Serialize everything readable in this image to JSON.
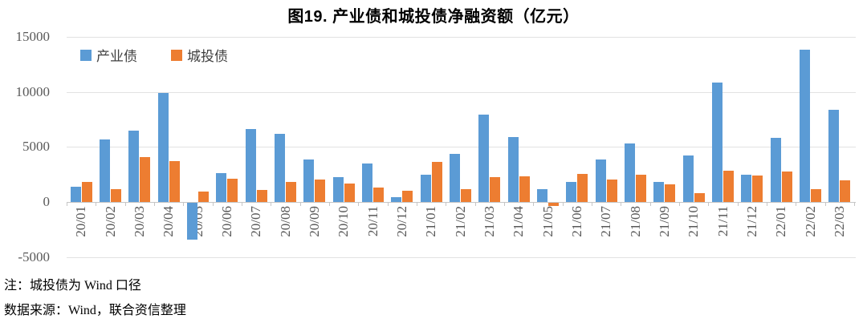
{
  "chart_data": {
    "type": "bar",
    "title": "图19.  产业债和城投债净融资额（亿元）",
    "categories": [
      "20/01",
      "20/02",
      "20/03",
      "20/04",
      "20/05",
      "20/06",
      "20/07",
      "20/08",
      "20/09",
      "20/10",
      "20/11",
      "20/12",
      "21/01",
      "21/02",
      "21/03",
      "21/04",
      "21/05",
      "21/06",
      "21/07",
      "21/08",
      "21/09",
      "21/10",
      "21/11",
      "21/12",
      "22/01",
      "22/02",
      "22/03"
    ],
    "series": [
      {
        "name": "产业债",
        "color": "#5B9BD5",
        "values": [
          1400,
          5700,
          6450,
          9900,
          -3350,
          2650,
          6600,
          6200,
          3900,
          2250,
          3500,
          450,
          2500,
          4350,
          7900,
          5900,
          1200,
          1850,
          3850,
          5300,
          1800,
          4200,
          10800,
          2500,
          5850,
          13800,
          8400
        ]
      },
      {
        "name": "城投债",
        "color": "#ED7D31",
        "values": [
          1850,
          1200,
          4100,
          3750,
          1000,
          2150,
          1100,
          1850,
          2050,
          1700,
          1300,
          1050,
          3650,
          1150,
          2300,
          2350,
          -300,
          2550,
          2050,
          2500,
          1600,
          850,
          2850,
          2450,
          2800,
          1150,
          2000
        ]
      }
    ],
    "ylim": [
      -5000,
      15000
    ],
    "yticks": [
      -5000,
      0,
      5000,
      10000,
      15000
    ],
    "grid": true,
    "legend_position": "top-left-inside",
    "xlabel": "",
    "ylabel": ""
  },
  "notes": {
    "line1": "注：城投债为 Wind 口径",
    "line2": "数据来源：Wind，联合资信整理"
  }
}
